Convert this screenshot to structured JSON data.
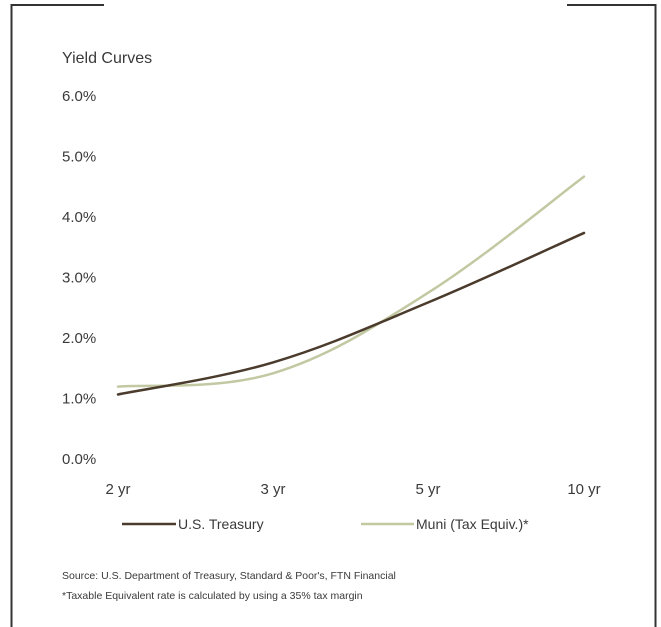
{
  "chart_data": {
    "type": "line",
    "title": "Yield Curves",
    "categories": [
      "2 yr",
      "3 yr",
      "5 yr",
      "10 yr"
    ],
    "yticks": [
      "6.0%",
      "5.0%",
      "4.0%",
      "3.0%",
      "2.0%",
      "1.0%",
      "0.0%"
    ],
    "ylim": [
      0,
      6
    ],
    "series": [
      {
        "name": "U.S. Treasury",
        "color": "#4a3b2c",
        "values": [
          1.05,
          1.58,
          2.57,
          3.72
        ]
      },
      {
        "name": "Muni (Tax Equiv.)*",
        "color": "#c2c9a2",
        "values": [
          1.18,
          1.4,
          2.73,
          4.65
        ]
      }
    ],
    "legend_position": "bottom",
    "grid": false
  },
  "footnotes": {
    "source": "Source: U.S. Department of Treasury, Standard & Poor's, FTN Financial",
    "taxable": "*Taxable Equivalent rate is calculated by using a 35% tax margin"
  }
}
